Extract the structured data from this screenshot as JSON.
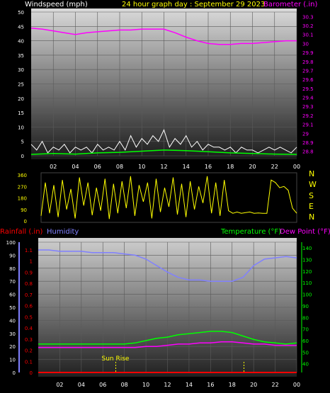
{
  "colors": {
    "background": "#000000",
    "wind_label": "#ffffff",
    "title": "#ffff00",
    "barometer": "#ff00ff",
    "wind_series": "#ffffff",
    "gust_series": "#00ff00",
    "direction": "#ffff00",
    "rainfall": "#ff0000",
    "humidity": "#8080ff",
    "temperature": "#00ff00",
    "dewpoint": "#ff00ff",
    "sun": "#ffff00"
  },
  "chart_data": [
    {
      "type": "line",
      "title": "24 hour graph day : September 29 2023",
      "left_axis_label": "Windspeed (mph)",
      "right_axis_label": "Barometer (.in)",
      "x_ticks": [
        "02",
        "04",
        "06",
        "08",
        "10",
        "12",
        "14",
        "16",
        "18",
        "20",
        "22",
        "00"
      ],
      "left_ticks": [
        "0",
        "5",
        "10",
        "15",
        "20",
        "25",
        "30",
        "35",
        "40",
        "45",
        "50"
      ],
      "left_ylim": [
        0,
        50
      ],
      "right_ticks": [
        "28.8",
        "28.9",
        "29",
        "29.1",
        "29.2",
        "29.3",
        "29.4",
        "29.5",
        "29.6",
        "29.7",
        "29.8",
        "29.9",
        "30",
        "30.1",
        "30.2",
        "30.3"
      ],
      "right_ylim": [
        28.75,
        30.35
      ],
      "xlim": [
        0,
        24
      ],
      "grid": true,
      "series": [
        {
          "key": "barometer",
          "axis": "right",
          "x": [
            0,
            1,
            2,
            3,
            4,
            5,
            6,
            7,
            8,
            9,
            10,
            11,
            12,
            13,
            14,
            15,
            16,
            17,
            18,
            19,
            20,
            21,
            22,
            23,
            24
          ],
          "values": [
            30.17,
            30.16,
            30.14,
            30.12,
            30.1,
            30.12,
            30.13,
            30.14,
            30.15,
            30.15,
            30.16,
            30.16,
            30.16,
            30.12,
            30.07,
            30.03,
            30.0,
            29.99,
            29.99,
            30.0,
            30.0,
            30.01,
            30.02,
            30.03,
            30.03
          ]
        },
        {
          "key": "wind",
          "axis": "left",
          "x": [
            0,
            0.5,
            1,
            1.5,
            2,
            2.5,
            3,
            3.5,
            4,
            4.5,
            5,
            5.5,
            6,
            6.5,
            7,
            7.5,
            8,
            8.5,
            9,
            9.5,
            10,
            10.5,
            11,
            11.5,
            12,
            12.5,
            13,
            13.5,
            14,
            14.5,
            15,
            15.5,
            16,
            16.5,
            17,
            17.5,
            18,
            18.5,
            19,
            19.5,
            20,
            20.5,
            21,
            21.5,
            22,
            22.5,
            23,
            23.5,
            24
          ],
          "values": [
            4,
            2,
            5,
            1,
            3,
            2,
            4,
            1,
            3,
            2,
            3,
            1,
            4,
            2,
            3,
            2,
            5,
            2,
            7,
            3,
            6,
            4,
            7,
            5,
            9,
            3,
            6,
            4,
            7,
            3,
            5,
            2,
            4,
            3,
            3,
            2,
            3,
            1,
            3,
            2,
            2,
            1,
            2,
            3,
            2,
            3,
            2,
            1,
            3
          ]
        },
        {
          "key": "gust",
          "axis": "left",
          "x": [
            0,
            2,
            4,
            6,
            8,
            10,
            12,
            14,
            16,
            18,
            20,
            22,
            24
          ],
          "values": [
            0.5,
            0.8,
            0.6,
            1.0,
            1.2,
            1.6,
            2.0,
            1.8,
            1.4,
            1.0,
            0.8,
            0.6,
            0.5
          ]
        }
      ]
    },
    {
      "type": "line",
      "left_ticks": [
        "360",
        "270",
        "180",
        "90",
        "0"
      ],
      "ylim": [
        0,
        360
      ],
      "right_labels": [
        "N",
        "W",
        "S",
        "E",
        "N"
      ],
      "xlim": [
        0,
        24
      ],
      "series": [
        {
          "key": "direction",
          "x": [
            0,
            0.4,
            0.8,
            1.2,
            1.6,
            2,
            2.4,
            2.8,
            3.2,
            3.6,
            4,
            4.4,
            4.8,
            5.2,
            5.6,
            6,
            6.4,
            6.8,
            7.2,
            7.6,
            8,
            8.4,
            8.8,
            9.2,
            9.6,
            10,
            10.4,
            10.8,
            11.2,
            11.6,
            12,
            12.4,
            12.8,
            13.2,
            13.6,
            14,
            14.4,
            14.8,
            15.2,
            15.6,
            16,
            16.4,
            16.8,
            17.2,
            17.6,
            18,
            18.4,
            18.8,
            19.2,
            19.6,
            20,
            20.4,
            20.8,
            21.2,
            21.6,
            22,
            22.4,
            22.8,
            23.2,
            23.6,
            24
          ],
          "values": [
            40,
            300,
            60,
            280,
            30,
            320,
            90,
            250,
            20,
            340,
            120,
            300,
            45,
            260,
            80,
            330,
            15,
            290,
            60,
            310,
            100,
            350,
            40,
            280,
            150,
            300,
            20,
            330,
            70,
            260,
            110,
            340,
            50,
            290,
            30,
            310,
            90,
            270,
            140,
            350,
            60,
            300,
            40,
            320,
            80,
            60,
            70,
            60,
            65,
            70,
            60,
            62,
            60,
            60,
            320,
            300,
            260,
            270,
            240,
            100,
            60
          ]
        }
      ]
    },
    {
      "type": "line",
      "left_labels": [
        "Rainfall (.in)",
        "Humidity"
      ],
      "right_labels": [
        "Temperature (°F)",
        "Dew Point (°F)"
      ],
      "x_ticks": [
        "02",
        "04",
        "06",
        "08",
        "10",
        "12",
        "14",
        "16",
        "18",
        "20",
        "22",
        "00"
      ],
      "humidity_ticks": [
        "0",
        "10",
        "20",
        "30",
        "40",
        "50",
        "60",
        "70",
        "80",
        "90",
        "100"
      ],
      "humidity_ylim": [
        0,
        100
      ],
      "rain_ticks": [
        "0",
        "0.1",
        "0.2",
        "0.3",
        "0.4",
        "0.5",
        "0.6",
        "0.7",
        "0.8",
        "0.9",
        "1",
        "1.1"
      ],
      "rain_ylim": [
        0,
        1.17
      ],
      "temp_ticks": [
        "40",
        "50",
        "60",
        "70",
        "80",
        "90",
        "100",
        "110",
        "120",
        "130",
        "140"
      ],
      "temp_ylim": [
        32.5,
        145
      ],
      "xlim": [
        0,
        24
      ],
      "grid": true,
      "annotations": [
        {
          "text": "Sun Rise",
          "x": 7.2
        },
        {
          "text": "",
          "x": 19.1
        }
      ],
      "series": [
        {
          "key": "humidity",
          "axis": "humidity",
          "x": [
            0,
            1,
            2,
            3,
            4,
            5,
            6,
            7,
            8,
            9,
            10,
            11,
            12,
            13,
            14,
            15,
            16,
            17,
            18,
            19,
            20,
            21,
            22,
            23,
            24
          ],
          "values": [
            94,
            94,
            93,
            93,
            93,
            92,
            92,
            92,
            91,
            90,
            87,
            82,
            77,
            73,
            71,
            71,
            70,
            70,
            70,
            73,
            82,
            87,
            88,
            89,
            88
          ]
        },
        {
          "key": "temperature",
          "axis": "temp",
          "x": [
            0,
            1,
            2,
            3,
            4,
            5,
            6,
            7,
            8,
            9,
            10,
            11,
            12,
            13,
            14,
            15,
            16,
            17,
            18,
            19,
            20,
            21,
            22,
            23,
            24
          ],
          "values": [
            57,
            57,
            57,
            57,
            57,
            57,
            57,
            57,
            57,
            58,
            60,
            62,
            63,
            65,
            66,
            67,
            68,
            68,
            67,
            64,
            61,
            59,
            58,
            57,
            58
          ]
        },
        {
          "key": "dewpoint",
          "axis": "temp",
          "x": [
            0,
            1,
            2,
            3,
            4,
            5,
            6,
            7,
            8,
            9,
            10,
            11,
            12,
            13,
            14,
            15,
            16,
            17,
            18,
            19,
            20,
            21,
            22,
            23,
            24
          ],
          "values": [
            54,
            54,
            54,
            54,
            54,
            54,
            54,
            54,
            54,
            54,
            55,
            55,
            56,
            57,
            57,
            58,
            58,
            59,
            59,
            58,
            57,
            57,
            56,
            56,
            56
          ]
        },
        {
          "key": "rainfall",
          "axis": "rain",
          "x": [
            0,
            24
          ],
          "values": [
            0,
            0
          ]
        }
      ]
    }
  ]
}
